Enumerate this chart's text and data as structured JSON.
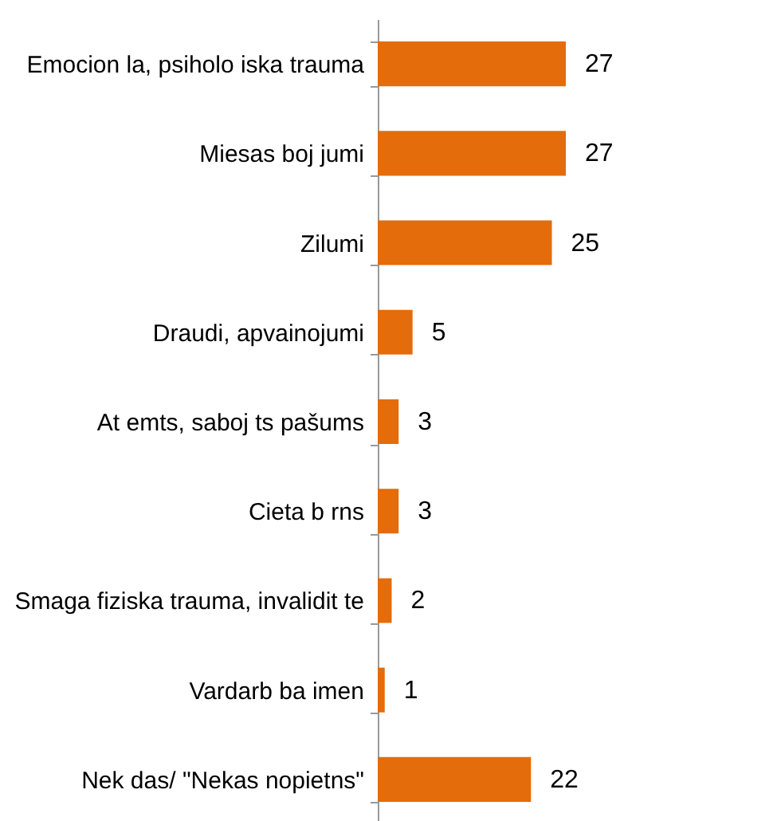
{
  "chart_data": {
    "type": "bar",
    "orientation": "horizontal",
    "categories": [
      "Emocion la, psiholo iska trauma",
      "Miesas boj jumi",
      "Zilumi",
      "Draudi, apvainojumi",
      "At emts, saboj ts pašums",
      "Cieta b rns",
      "Smaga fiziska trauma, invalidit te",
      "Vardarb ba imen",
      "Nek das/ \"Nekas nopietns\""
    ],
    "values": [
      27,
      27,
      25,
      5,
      3,
      3,
      2,
      1,
      22
    ],
    "color": "#e46c0a",
    "data_labels": true,
    "tick_labels": "y"
  }
}
